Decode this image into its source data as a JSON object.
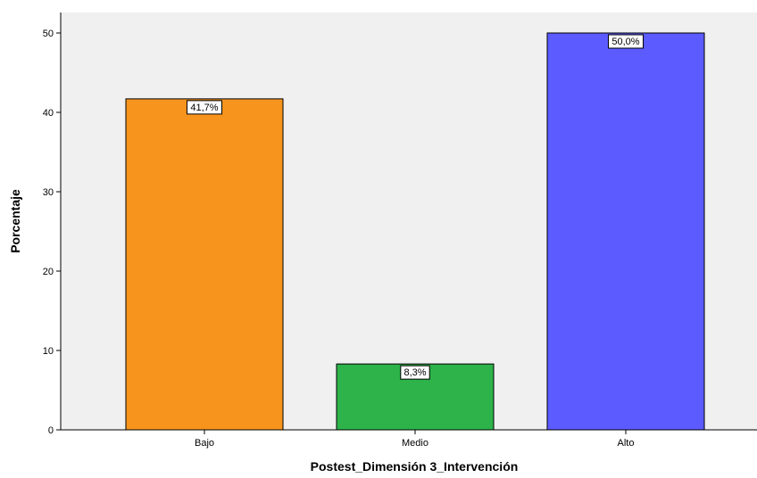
{
  "chart_data": {
    "type": "bar",
    "categories": [
      "Bajo",
      "Medio",
      "Alto"
    ],
    "values": [
      41.7,
      8.3,
      50.0
    ],
    "data_labels": [
      "41,7%",
      "8,3%",
      "50,0%"
    ],
    "colors": [
      "#F7941D",
      "#2DB34A",
      "#5B5BFF"
    ],
    "xlabel": "Postest_Dimensión 3_Intervención",
    "ylabel": "Porcentaje",
    "ylim": [
      0,
      50
    ],
    "yticks": [
      0,
      10,
      20,
      30,
      40,
      50
    ],
    "ytick_labels": [
      "0",
      "10",
      "20",
      "30",
      "40",
      "50"
    ],
    "grid": false,
    "plot_background": "#F0F0F0",
    "bar_outline": "#000000"
  }
}
